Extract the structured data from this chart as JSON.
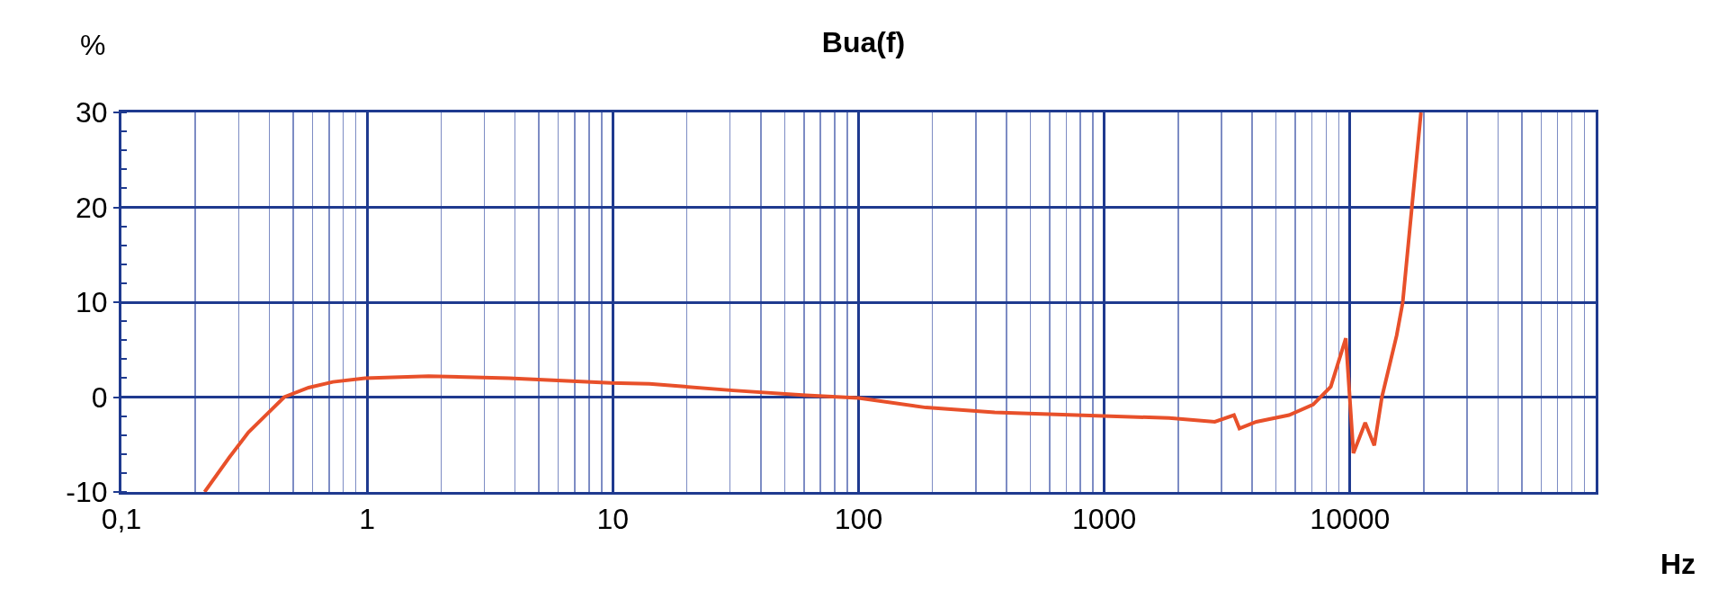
{
  "chart_data": {
    "type": "line",
    "title": "Bua(f)",
    "xlabel": "Hz",
    "ylabel": "%",
    "log": "x",
    "grid": true,
    "marker": "none",
    "line_style": "solid",
    "xlim": [
      0.1,
      100000
    ],
    "xticks": [
      {
        "value": 0.1,
        "label": "0,1"
      },
      1,
      10,
      100,
      1000,
      10000,
      {
        "value": 0.2,
        "label": null
      },
      {
        "value": 0.3,
        "label": null
      },
      {
        "value": 0.4,
        "label": null
      },
      {
        "value": 0.5,
        "label": null
      },
      {
        "value": 0.6,
        "label": null
      },
      {
        "value": 0.7,
        "label": null
      },
      {
        "value": 0.8,
        "label": null
      },
      {
        "value": 0.9,
        "label": null
      },
      {
        "value": 2,
        "label": null
      },
      {
        "value": 3,
        "label": null
      },
      {
        "value": 4,
        "label": null
      },
      {
        "value": 5,
        "label": null
      },
      {
        "value": 6,
        "label": null
      },
      {
        "value": 7,
        "label": null
      },
      {
        "value": 8,
        "label": null
      },
      {
        "value": 9,
        "label": null
      },
      {
        "value": 20,
        "label": null
      },
      {
        "value": 30,
        "label": null
      },
      {
        "value": 40,
        "label": null
      },
      {
        "value": 50,
        "label": null
      },
      {
        "value": 60,
        "label": null
      },
      {
        "value": 70,
        "label": null
      },
      {
        "value": 80,
        "label": null
      },
      {
        "value": 90,
        "label": null
      },
      {
        "value": 200,
        "label": null
      },
      {
        "value": 300,
        "label": null
      },
      {
        "value": 400,
        "label": null
      },
      {
        "value": 500,
        "label": null
      },
      {
        "value": 600,
        "label": null
      },
      {
        "value": 700,
        "label": null
      },
      {
        "value": 800,
        "label": null
      },
      {
        "value": 900,
        "label": null
      },
      {
        "value": 2000,
        "label": null
      },
      {
        "value": 3000,
        "label": null
      },
      {
        "value": 4000,
        "label": null
      },
      {
        "value": 5000,
        "label": null
      },
      {
        "value": 6000,
        "label": null
      },
      {
        "value": 7000,
        "label": null
      },
      {
        "value": 8000,
        "label": null
      },
      {
        "value": 9000,
        "label": null
      },
      {
        "value": 20000,
        "label": null
      },
      {
        "value": 30000,
        "label": null
      },
      {
        "value": 40000,
        "label": null
      },
      {
        "value": 50000,
        "label": null
      },
      {
        "value": 60000,
        "label": null
      },
      {
        "value": 70000,
        "label": null
      },
      {
        "value": 80000,
        "label": null
      },
      {
        "value": 90000,
        "label": null
      }
    ],
    "ylim": [
      -10,
      30
    ],
    "yticks": [
      -10,
      0,
      10,
      20,
      30
    ],
    "x": [
      0.218,
      0.274,
      0.329,
      0.398,
      0.46,
      0.578,
      0.726,
      0.98,
      1.78,
      3.78,
      9.8,
      14.1,
      30.9,
      61,
      100,
      188,
      358,
      991,
      1837,
      2818,
      3373,
      3548,
      4159,
      5649,
      7079,
      8356,
      9616,
      10330,
      11535,
      12560,
      13490,
      15490,
      16400,
      17860,
      19450
    ],
    "series": [
      {
        "color": "#e8502a",
        "values": [
          -10,
          -6.4,
          -3.7,
          -1.6,
          0,
          1.0,
          1.6,
          2.0,
          2.2,
          2.0,
          1.5,
          1.4,
          0.7,
          0.2,
          -0.1,
          -1.1,
          -1.6,
          -2.0,
          -2.2,
          -2.6,
          -1.9,
          -3.3,
          -2.6,
          -1.9,
          -0.8,
          1.1,
          6.2,
          -5.9,
          -2.7,
          -5.1,
          0,
          6.5,
          10,
          20,
          30
        ]
      }
    ]
  }
}
